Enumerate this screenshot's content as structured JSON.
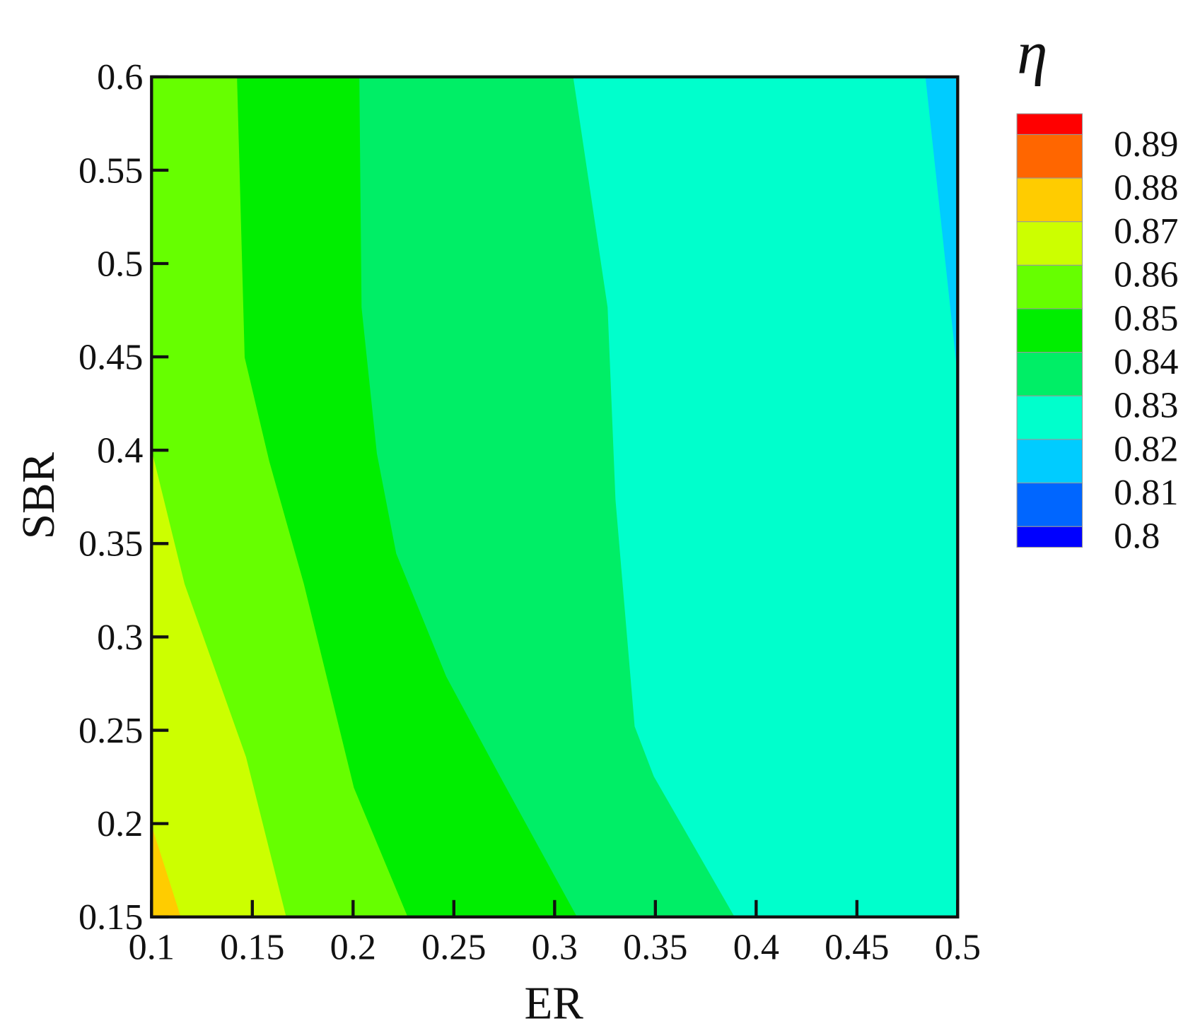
{
  "chart_data": {
    "type": "contour",
    "x_label": "ER",
    "y_label": "SBR",
    "colorbar_title": "η",
    "xlim": [
      0.1,
      0.5
    ],
    "ylim": [
      0.15,
      0.6
    ],
    "xticks": [
      0.1,
      0.15,
      0.2,
      0.25,
      0.3,
      0.35,
      0.4,
      0.45,
      0.5
    ],
    "yticks": [
      0.15,
      0.2,
      0.25,
      0.3,
      0.35,
      0.4,
      0.45,
      0.5,
      0.55,
      0.6
    ],
    "levels": [
      0.8,
      0.81,
      0.82,
      0.83,
      0.84,
      0.85,
      0.86,
      0.87,
      0.88,
      0.89
    ],
    "colors": [
      "#0000ff",
      "#0066ff",
      "#00ccff",
      "#00ffcc",
      "#00ee66",
      "#00ee00",
      "#66ff00",
      "#ccff00",
      "#ffcc00",
      "#ff6600",
      "#ff0000"
    ],
    "boundaries": [
      {
        "level": 0.82,
        "x": [
          0.484,
          0.5
        ],
        "y": [
          0.6,
          0.4394
        ]
      },
      {
        "level": 0.83,
        "x": [
          0.3092,
          0.3263,
          0.3302,
          0.3397,
          0.3492,
          0.3893
        ],
        "y": [
          0.6,
          0.4765,
          0.3735,
          0.2521,
          0.2253,
          0.15
        ]
      },
      {
        "level": 0.84,
        "x": [
          0.2031,
          0.2042,
          0.2118,
          0.2214,
          0.2462,
          0.2729,
          0.3111
        ],
        "y": [
          0.6,
          0.4765,
          0.3983,
          0.3447,
          0.2788,
          0.2253,
          0.15
        ]
      },
      {
        "level": 0.85,
        "x": [
          0.1424,
          0.1462,
          0.1584,
          0.1756,
          0.2004,
          0.2271
        ],
        "y": [
          0.6,
          0.4497,
          0.3941,
          0.3283,
          0.2192,
          0.15
        ]
      },
      {
        "level": 0.86,
        "x": [
          0.1,
          0.1164,
          0.1469,
          0.1668
        ],
        "y": [
          0.4003,
          0.3283,
          0.2356,
          0.15
        ]
      },
      {
        "level": 0.87,
        "x": [
          0.1,
          0.1145
        ],
        "y": [
          0.199,
          0.15
        ]
      }
    ]
  }
}
